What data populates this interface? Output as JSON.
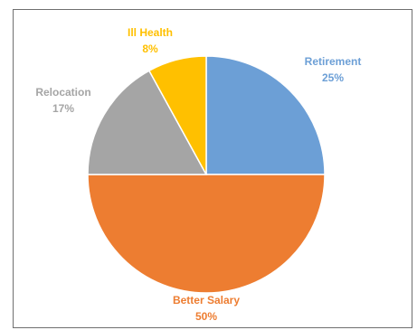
{
  "chart_data": {
    "type": "pie",
    "title": "",
    "start": "top",
    "direction": "clockwise",
    "legend": "none",
    "slices": [
      {
        "label": "Retirement",
        "value": 25,
        "value_label": "25%",
        "color": "#6c9fd6"
      },
      {
        "label": "Better Salary",
        "value": 50,
        "value_label": "50%",
        "color": "#ed7d31"
      },
      {
        "label": "Relocation",
        "value": 17,
        "value_label": "17%",
        "color": "#a5a5a5"
      },
      {
        "label": "Ill Health",
        "value": 8,
        "value_label": "8%",
        "color": "#ffc000"
      }
    ]
  }
}
